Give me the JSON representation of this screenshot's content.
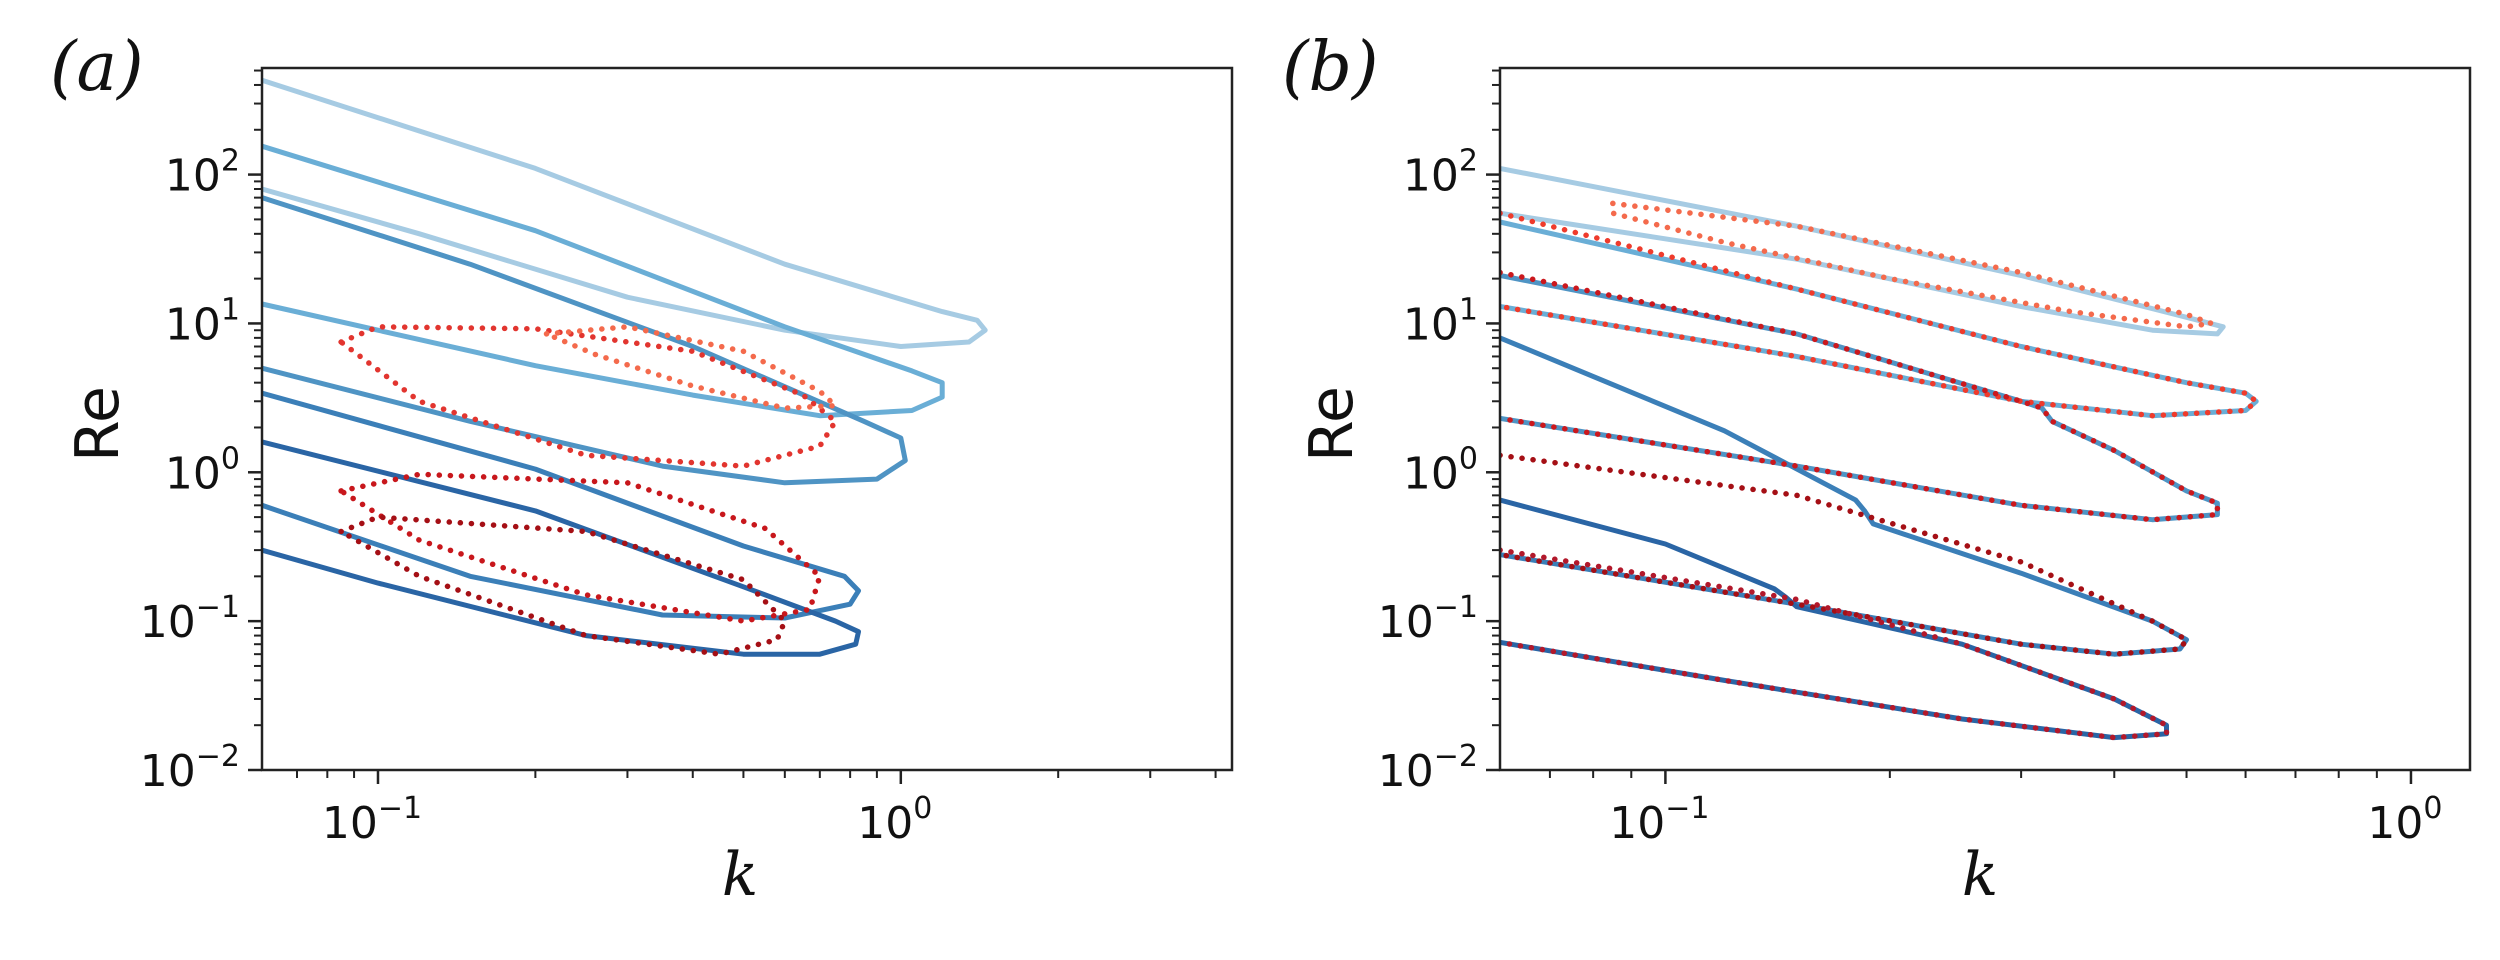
{
  "chart_data": [
    {
      "panel_label": "(a)",
      "type": "line",
      "xlabel": "k",
      "ylabel": "Re",
      "xscale": "log",
      "yscale": "log",
      "xlim": [
        0.06,
        4.3
      ],
      "ylim": [
        0.01,
        520
      ],
      "xticks": [
        {
          "value": 0.1,
          "base": "10",
          "exp": "−1"
        },
        {
          "value": 1,
          "base": "10",
          "exp": "0"
        }
      ],
      "yticks": [
        {
          "value": 0.01,
          "base": "10",
          "exp": "−2"
        },
        {
          "value": 0.1,
          "base": "10",
          "exp": "−1"
        },
        {
          "value": 1,
          "base": "10",
          "exp": "0"
        },
        {
          "value": 10,
          "base": "10",
          "exp": "1"
        },
        {
          "value": 100,
          "base": "10",
          "exp": "2"
        }
      ],
      "series": [
        {
          "name": "solid-1",
          "style": "solid",
          "color": "#a6cbe3",
          "x": [
            0.06,
            0.2,
            0.6,
            1.2,
            1.4,
            1.45,
            1.35,
            1.0,
            0.6,
            0.3,
            0.12,
            0.06
          ],
          "y": [
            430,
            110,
            25,
            12,
            10.5,
            9,
            7.5,
            7,
            9,
            15,
            40,
            80
          ]
        },
        {
          "name": "solid-2",
          "style": "solid",
          "color": "#6aaed6",
          "x": [
            0.06,
            0.2,
            0.6,
            1.05,
            1.2,
            1.2,
            1.05,
            0.7,
            0.4,
            0.2,
            0.1,
            0.06
          ],
          "y": [
            155,
            42,
            9.5,
            4.8,
            4,
            3.2,
            2.6,
            2.4,
            3.3,
            5.2,
            9,
            13.5
          ]
        },
        {
          "name": "solid-3",
          "style": "solid",
          "color": "#4f94c4",
          "x": [
            0.06,
            0.15,
            0.4,
            0.85,
            1.0,
            1.02,
            0.9,
            0.6,
            0.35,
            0.15,
            0.06
          ],
          "y": [
            70,
            25,
            7,
            2.2,
            1.7,
            1.2,
            0.9,
            0.85,
            1.1,
            2.2,
            5
          ]
        },
        {
          "name": "solid-4",
          "style": "solid",
          "color": "#3b7fb8",
          "x": [
            0.06,
            0.2,
            0.5,
            0.78,
            0.83,
            0.8,
            0.6,
            0.35,
            0.15,
            0.06
          ],
          "y": [
            3.4,
            1.05,
            0.32,
            0.2,
            0.16,
            0.13,
            0.105,
            0.11,
            0.2,
            0.6
          ]
        },
        {
          "name": "solid-5",
          "style": "solid",
          "color": "#2a65a5",
          "x": [
            0.06,
            0.2,
            0.5,
            0.75,
            0.83,
            0.82,
            0.7,
            0.5,
            0.25,
            0.1,
            0.06
          ],
          "y": [
            1.6,
            0.55,
            0.17,
            0.1,
            0.085,
            0.07,
            0.06,
            0.06,
            0.08,
            0.18,
            0.3
          ]
        },
        {
          "name": "dotted-1",
          "style": "dotted",
          "color": "#e2352f",
          "x": [
            0.085,
            0.1,
            0.2,
            0.4,
            0.65,
            0.75,
            0.7,
            0.5,
            0.25,
            0.12,
            0.085
          ],
          "y": [
            7.5,
            9.5,
            9.2,
            6.5,
            3.3,
            2.2,
            1.5,
            1.1,
            1.3,
            3,
            7.5
          ]
        },
        {
          "name": "dotted-2",
          "style": "dotted",
          "color": "#f46a4c",
          "x": [
            0.21,
            0.3,
            0.5,
            0.7,
            0.75,
            0.6,
            0.4,
            0.26,
            0.21
          ],
          "y": [
            8.5,
            9.5,
            6.5,
            3.5,
            2.8,
            2.7,
            3.8,
            6.2,
            8.5
          ]
        },
        {
          "name": "dotted-3",
          "style": "dotted",
          "color": "#c8171c",
          "x": [
            0.085,
            0.12,
            0.3,
            0.55,
            0.7,
            0.67,
            0.5,
            0.25,
            0.12,
            0.085
          ],
          "y": [
            0.75,
            0.97,
            0.85,
            0.42,
            0.2,
            0.12,
            0.1,
            0.15,
            0.35,
            0.75
          ]
        },
        {
          "name": "dotted-4",
          "style": "dotted",
          "color": "#a50f15",
          "x": [
            0.085,
            0.1,
            0.25,
            0.5,
            0.6,
            0.58,
            0.45,
            0.25,
            0.12,
            0.085
          ],
          "y": [
            0.4,
            0.5,
            0.4,
            0.19,
            0.1,
            0.075,
            0.06,
            0.08,
            0.2,
            0.4
          ]
        }
      ]
    },
    {
      "panel_label": "(b)",
      "type": "line",
      "xlabel": "k",
      "ylabel": "Re",
      "xscale": "log",
      "yscale": "log",
      "xlim": [
        0.06,
        1.2
      ],
      "ylim": [
        0.01,
        520
      ],
      "xticks": [
        {
          "value": 0.1,
          "base": "10",
          "exp": "−1"
        },
        {
          "value": 1,
          "base": "10",
          "exp": "0"
        }
      ],
      "yticks": [
        {
          "value": 0.01,
          "base": "10",
          "exp": "−2"
        },
        {
          "value": 0.1,
          "base": "10",
          "exp": "−1"
        },
        {
          "value": 1,
          "base": "10",
          "exp": "0"
        },
        {
          "value": 10,
          "base": "10",
          "exp": "1"
        },
        {
          "value": 100,
          "base": "10",
          "exp": "2"
        }
      ],
      "series": [
        {
          "name": "solid-1",
          "style": "solid",
          "color": "#a6cbe3",
          "x": [
            0.06,
            0.15,
            0.3,
            0.5,
            0.56,
            0.55,
            0.45,
            0.3,
            0.15,
            0.06
          ],
          "y": [
            110,
            45,
            21,
            11,
            9.5,
            8.5,
            9,
            13,
            27,
            55
          ]
        },
        {
          "name": "solid-2",
          "style": "solid",
          "color": "#6aaed6",
          "x": [
            0.06,
            0.15,
            0.3,
            0.5,
            0.6,
            0.62,
            0.6,
            0.45,
            0.3,
            0.15,
            0.06
          ],
          "y": [
            48,
            17,
            7,
            4,
            3.4,
            3,
            2.6,
            2.4,
            3,
            6,
            13
          ]
        },
        {
          "name": "solid-3",
          "style": "solid",
          "color": "#4f94c4",
          "x": [
            0.06,
            0.15,
            0.3,
            0.32,
            0.33,
            0.4,
            0.5,
            0.55,
            0.55,
            0.45,
            0.3,
            0.15,
            0.06
          ],
          "y": [
            21,
            8.5,
            3,
            2.7,
            2.2,
            1.4,
            0.75,
            0.62,
            0.52,
            0.48,
            0.6,
            1.1,
            2.3
          ]
        },
        {
          "name": "solid-4",
          "style": "solid",
          "color": "#3b7fb8",
          "x": [
            0.06,
            0.12,
            0.18,
            0.185,
            0.19,
            0.3,
            0.45,
            0.5,
            0.49,
            0.4,
            0.3,
            0.15,
            0.06
          ],
          "y": [
            8,
            1.9,
            0.65,
            0.55,
            0.45,
            0.21,
            0.1,
            0.075,
            0.065,
            0.06,
            0.07,
            0.13,
            0.28
          ]
        },
        {
          "name": "solid-5",
          "style": "solid",
          "color": "#2a65a5",
          "x": [
            0.06,
            0.1,
            0.14,
            0.145,
            0.15,
            0.25,
            0.4,
            0.47,
            0.47,
            0.4,
            0.25,
            0.12,
            0.06
          ],
          "y": [
            0.65,
            0.33,
            0.165,
            0.145,
            0.125,
            0.07,
            0.03,
            0.02,
            0.0175,
            0.0165,
            0.022,
            0.04,
            0.072
          ]
        },
        {
          "name": "dotted-1",
          "style": "dotted",
          "color": "#f46a4c",
          "x": [
            0.085,
            0.15,
            0.3,
            0.5,
            0.54,
            0.5,
            0.35,
            0.2,
            0.12,
            0.085
          ],
          "y": [
            64,
            45,
            22,
            11.5,
            10,
            9.5,
            12,
            20,
            35,
            55
          ]
        },
        {
          "name": "dotted-2",
          "style": "dotted",
          "color": "#ef3b2c",
          "x": [
            0.06,
            0.15,
            0.3,
            0.5,
            0.6,
            0.62,
            0.6,
            0.45,
            0.3,
            0.15,
            0.06
          ],
          "y": [
            55,
            17,
            7,
            4,
            3.4,
            3,
            2.6,
            2.4,
            3,
            6,
            13
          ]
        },
        {
          "name": "dotted-3",
          "style": "dotted",
          "color": "#cb181d",
          "x": [
            0.06,
            0.15,
            0.3,
            0.32,
            0.33,
            0.4,
            0.5,
            0.55,
            0.55,
            0.45,
            0.3,
            0.15,
            0.06
          ],
          "y": [
            22,
            8.5,
            3,
            2.7,
            2.2,
            1.4,
            0.75,
            0.62,
            0.52,
            0.48,
            0.6,
            1.1,
            2.3
          ]
        },
        {
          "name": "dotted-4",
          "style": "dotted",
          "color": "#a50f15",
          "x": [
            0.06,
            0.15,
            0.3,
            0.45,
            0.5,
            0.49,
            0.4,
            0.3,
            0.15,
            0.06
          ],
          "y": [
            1.3,
            0.7,
            0.25,
            0.1,
            0.075,
            0.065,
            0.06,
            0.07,
            0.13,
            0.28
          ]
        },
        {
          "name": "dotted-5",
          "style": "dotted",
          "color": "#b2182b",
          "x": [
            0.06,
            0.15,
            0.25,
            0.4,
            0.47,
            0.47,
            0.4,
            0.25,
            0.12,
            0.06
          ],
          "y": [
            0.3,
            0.14,
            0.07,
            0.03,
            0.02,
            0.0175,
            0.0165,
            0.022,
            0.04,
            0.072
          ]
        }
      ]
    }
  ]
}
